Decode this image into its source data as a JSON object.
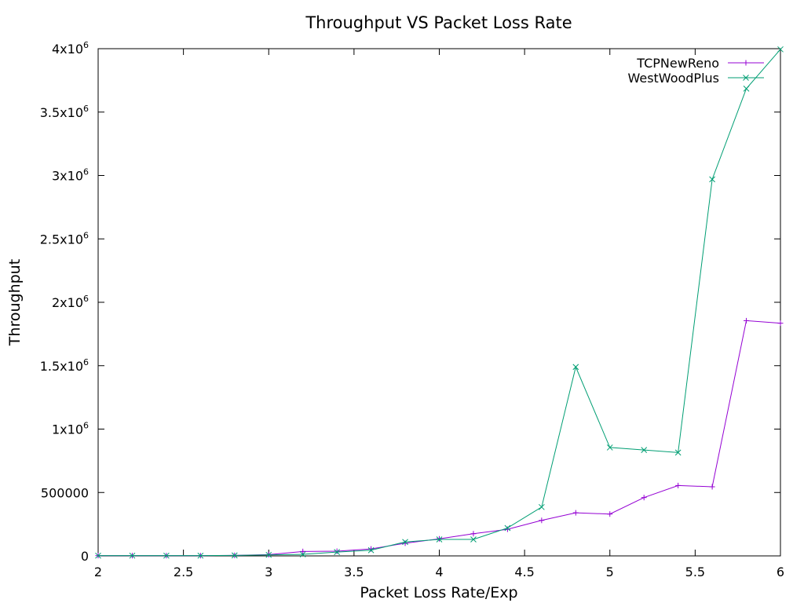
{
  "chart_data": {
    "type": "line",
    "title": "Throughput VS Packet Loss Rate",
    "xlabel": "Packet Loss Rate/Exp",
    "ylabel": "Throughput",
    "xlim": [
      2,
      6
    ],
    "ylim": [
      0,
      4000000
    ],
    "grid": false,
    "legend_position": "top-right",
    "x_ticks": [
      {
        "value": 2,
        "label": "2"
      },
      {
        "value": 2.5,
        "label": "2.5"
      },
      {
        "value": 3,
        "label": "3"
      },
      {
        "value": 3.5,
        "label": "3.5"
      },
      {
        "value": 4,
        "label": "4"
      },
      {
        "value": 4.5,
        "label": "4.5"
      },
      {
        "value": 5,
        "label": "5"
      },
      {
        "value": 5.5,
        "label": "5.5"
      },
      {
        "value": 6,
        "label": "6"
      }
    ],
    "y_ticks": [
      {
        "value": 0,
        "mantissa": "0",
        "exponent": ""
      },
      {
        "value": 500000,
        "mantissa": "500000",
        "exponent": ""
      },
      {
        "value": 1000000,
        "mantissa": "1x10",
        "exponent": "6"
      },
      {
        "value": 1500000,
        "mantissa": "1.5x10",
        "exponent": "6"
      },
      {
        "value": 2000000,
        "mantissa": "2x10",
        "exponent": "6"
      },
      {
        "value": 2500000,
        "mantissa": "2.5x10",
        "exponent": "6"
      },
      {
        "value": 3000000,
        "mantissa": "3x10",
        "exponent": "6"
      },
      {
        "value": 3500000,
        "mantissa": "3.5x10",
        "exponent": "6"
      },
      {
        "value": 4000000,
        "mantissa": "4x10",
        "exponent": "6"
      }
    ],
    "x": [
      2,
      2.2,
      2.4,
      2.6,
      2.8,
      3,
      3.2,
      3.4,
      3.6,
      3.8,
      4,
      4.2,
      4.4,
      4.6,
      4.8,
      5,
      5.2,
      5.4,
      5.6,
      5.8,
      6
    ],
    "series": [
      {
        "name": "TCPNewReno",
        "color": "#9400d3",
        "marker": "plus",
        "values": [
          2000,
          2000,
          2000,
          2000,
          4000,
          10000,
          35000,
          37000,
          55000,
          100000,
          135000,
          175000,
          210000,
          280000,
          340000,
          330000,
          460000,
          555000,
          545000,
          1855000,
          1835000
        ]
      },
      {
        "name": "WestWoodPlus",
        "color": "#009e73",
        "marker": "cross",
        "values": [
          2000,
          2000,
          2000,
          2000,
          4000,
          8000,
          12000,
          30000,
          45000,
          110000,
          130000,
          130000,
          220000,
          385000,
          1490000,
          855000,
          835000,
          815000,
          2970000,
          3685000,
          3995000
        ]
      }
    ]
  }
}
